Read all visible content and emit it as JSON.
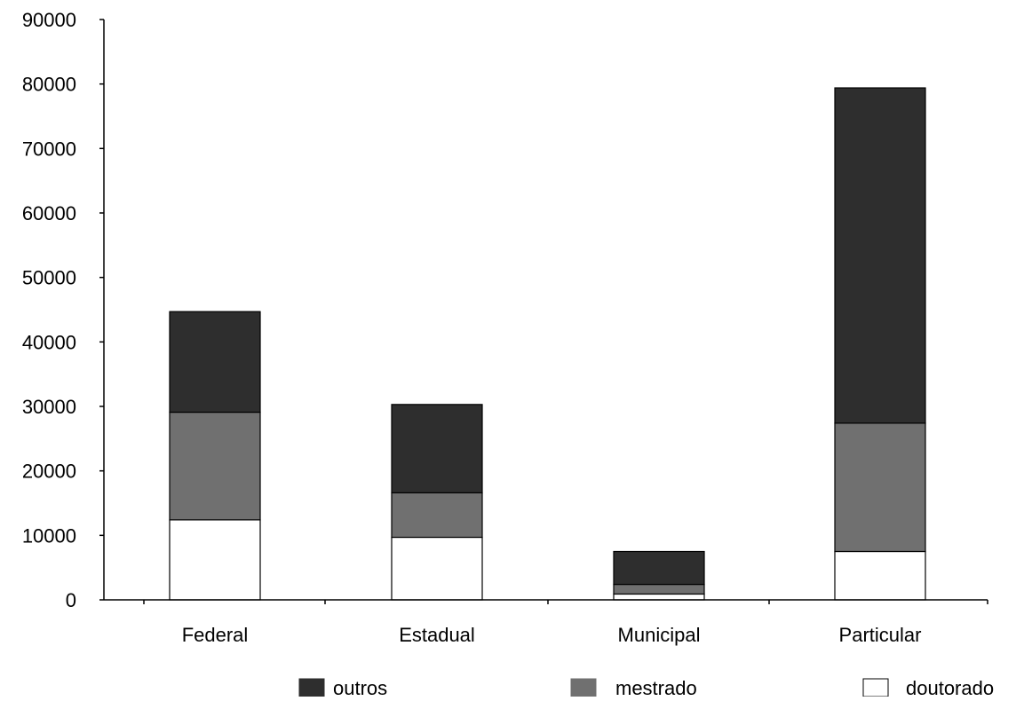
{
  "chart_data": {
    "type": "bar",
    "stacked": true,
    "categories": [
      "Federal",
      "Estadual",
      "Municipal",
      "Particular"
    ],
    "series": [
      {
        "name": "doutorado",
        "color": "#ffffff",
        "values": [
          12400,
          9700,
          900,
          7500
        ]
      },
      {
        "name": "mestrado",
        "color": "#707070",
        "values": [
          16700,
          6900,
          1500,
          19900
        ]
      },
      {
        "name": "outros",
        "color": "#2e2e2e",
        "values": [
          15600,
          13700,
          5100,
          52000
        ]
      }
    ],
    "legend_order": [
      "outros",
      "mestrado",
      "doutorado"
    ],
    "legend_position": "bottom",
    "ylim": [
      0,
      90000
    ],
    "yticks": [
      0,
      10000,
      20000,
      30000,
      40000,
      50000,
      60000,
      70000,
      80000,
      90000
    ],
    "ytick_labels": [
      "0",
      "10000",
      "20000",
      "30000",
      "40000",
      "50000",
      "60000",
      "70000",
      "80000",
      "90000"
    ],
    "grid": false,
    "title": "",
    "xlabel": "",
    "ylabel": ""
  }
}
